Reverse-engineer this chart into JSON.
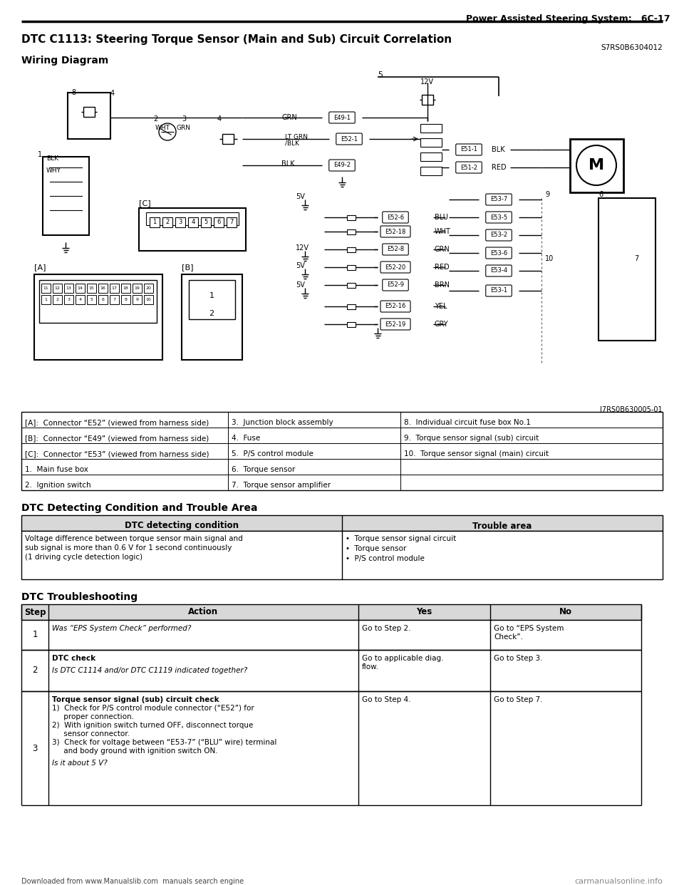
{
  "page_header": "Power Assisted Steering System:   6C-17",
  "title": "DTC C1113: Steering Torque Sensor (Main and Sub) Circuit Correlation",
  "subtitle_code": "S7RS0B6304012",
  "wiring_diagram_label": "Wiring Diagram",
  "legend_image_code": "I7RS0B630005-01",
  "background_color": "#ffffff",
  "legend_entries": [
    [
      "[A]:  Connector “E52” (viewed from harness side)",
      "3.  Junction block assembly",
      "8.  Individual circuit fuse box No.1"
    ],
    [
      "[B]:  Connector “E49” (viewed from harness side)",
      "4.  Fuse",
      "9.  Torque sensor signal (sub) circuit"
    ],
    [
      "[C]:  Connector “E53” (viewed from harness side)",
      "5.  P/S control module",
      "10.  Torque sensor signal (main) circuit"
    ],
    [
      "1.  Main fuse box",
      "6.  Torque sensor",
      ""
    ],
    [
      "2.  Ignition switch",
      "7.  Torque sensor amplifier",
      ""
    ]
  ],
  "dtc_section_title": "DTC Detecting Condition and Trouble Area",
  "dtc_table_headers": [
    "DTC detecting condition",
    "Trouble area"
  ],
  "dtc_table_row": [
    "Voltage difference between torque sensor main signal and\nsub signal is more than 0.6 V for 1 second continuously\n(1 driving cycle detection logic)",
    "•  Torque sensor signal circuit\n•  Torque sensor\n•  P/S control module"
  ],
  "troubleshooting_title": "DTC Troubleshooting",
  "trouble_table_headers": [
    "Step",
    "Action",
    "Yes",
    "No"
  ],
  "trouble_table_rows": [
    [
      "1",
      "Was “EPS System Check” performed?",
      "Go to Step 2.",
      "Go to “EPS System\nCheck”."
    ],
    [
      "2",
      "DTC check\n\nIs DTC C1114 and/or DTC C1119 indicated together?",
      "Go to applicable diag.\nflow.",
      "Go to Step 3."
    ],
    [
      "3",
      "Torque sensor signal (sub) circuit check\n1)  Check for P/S control module connector (“E52”) for\n     proper connection.\n2)  With ignition switch turned OFF, disconnect torque\n     sensor connector.\n3)  Check for voltage between “E53-7” (“BLU” wire) terminal\n     and body ground with ignition switch ON.\n\nIs it about 5 V?",
      "Go to Step 4.",
      "Go to Step 7."
    ]
  ],
  "footer_text": "Downloaded from www.Manualslib.com  manuals search engine",
  "footer_right": "carmanualsonline.info"
}
